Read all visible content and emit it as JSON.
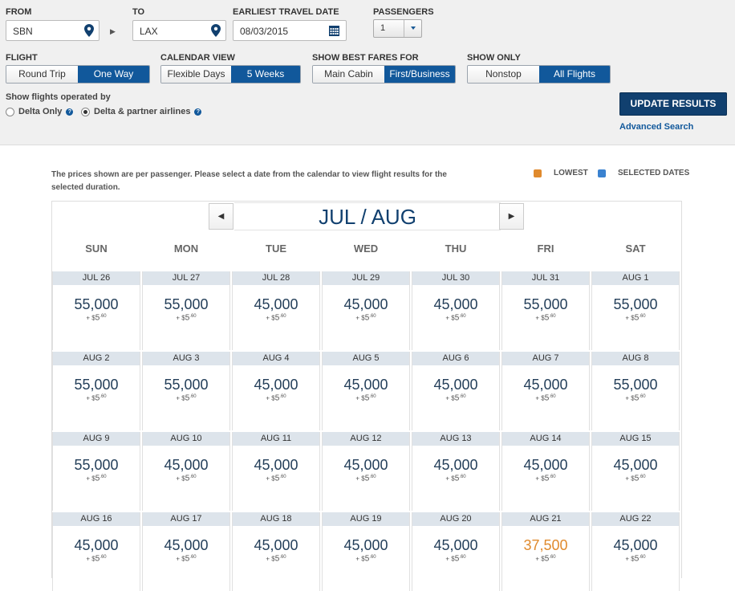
{
  "search": {
    "from_label": "FROM",
    "from_value": "SBN",
    "to_label": "TO",
    "to_value": "LAX",
    "date_label": "EARLIEST TRAVEL DATE",
    "date_value": "08/03/2015",
    "passengers_label": "PASSENGERS",
    "passengers_value": "1"
  },
  "flight": {
    "label": "FLIGHT",
    "options": [
      "Round Trip",
      "One Way"
    ],
    "selected": "One Way"
  },
  "calendar_view": {
    "label": "CALENDAR VIEW",
    "options": [
      "Flexible Days",
      "5 Weeks"
    ],
    "selected": "5 Weeks"
  },
  "best_fares": {
    "label": "SHOW BEST FARES FOR",
    "options": [
      "Main Cabin",
      "First/Business"
    ],
    "selected": "First/Business"
  },
  "show_only": {
    "label": "SHOW ONLY",
    "options": [
      "Nonstop",
      "All Flights"
    ],
    "selected": "All Flights"
  },
  "operated": {
    "label": "Show flights operated by",
    "options": [
      "Delta Only",
      "Delta & partner airlines"
    ],
    "selected": "Delta & partner airlines"
  },
  "update_button": "UPDATE RESULTS",
  "advanced_search": "Advanced Search",
  "note": "The prices shown are per passenger. Please select a date from the calendar to view flight results for the selected duration.",
  "legend": {
    "lowest": "LOWEST",
    "selected": "SELECTED DATES",
    "lowest_color": "#e08a2d",
    "selected_color": "#3a82d0"
  },
  "month_title": "JUL / AUG",
  "weekdays": [
    "SUN",
    "MON",
    "TUE",
    "WED",
    "THU",
    "FRI",
    "SAT"
  ],
  "tax_prefix": "+ $",
  "tax_whole": "5",
  "tax_cents": ".60",
  "weeks": [
    [
      {
        "date": "JUL 26",
        "price": "55,000"
      },
      {
        "date": "JUL 27",
        "price": "55,000"
      },
      {
        "date": "JUL 28",
        "price": "45,000"
      },
      {
        "date": "JUL 29",
        "price": "45,000"
      },
      {
        "date": "JUL 30",
        "price": "45,000"
      },
      {
        "date": "JUL 31",
        "price": "55,000"
      },
      {
        "date": "AUG 1",
        "price": "55,000"
      }
    ],
    [
      {
        "date": "AUG 2",
        "price": "55,000"
      },
      {
        "date": "AUG 3",
        "price": "55,000"
      },
      {
        "date": "AUG 4",
        "price": "45,000"
      },
      {
        "date": "AUG 5",
        "price": "45,000"
      },
      {
        "date": "AUG 6",
        "price": "45,000"
      },
      {
        "date": "AUG 7",
        "price": "45,000"
      },
      {
        "date": "AUG 8",
        "price": "55,000"
      }
    ],
    [
      {
        "date": "AUG 9",
        "price": "55,000"
      },
      {
        "date": "AUG 10",
        "price": "45,000"
      },
      {
        "date": "AUG 11",
        "price": "45,000"
      },
      {
        "date": "AUG 12",
        "price": "45,000"
      },
      {
        "date": "AUG 13",
        "price": "45,000"
      },
      {
        "date": "AUG 14",
        "price": "45,000"
      },
      {
        "date": "AUG 15",
        "price": "45,000"
      }
    ],
    [
      {
        "date": "AUG 16",
        "price": "45,000"
      },
      {
        "date": "AUG 17",
        "price": "45,000"
      },
      {
        "date": "AUG 18",
        "price": "45,000"
      },
      {
        "date": "AUG 19",
        "price": "45,000"
      },
      {
        "date": "AUG 20",
        "price": "45,000"
      },
      {
        "date": "AUG 21",
        "price": "37,500",
        "lowest": true
      },
      {
        "date": "AUG 22",
        "price": "45,000"
      }
    ]
  ]
}
